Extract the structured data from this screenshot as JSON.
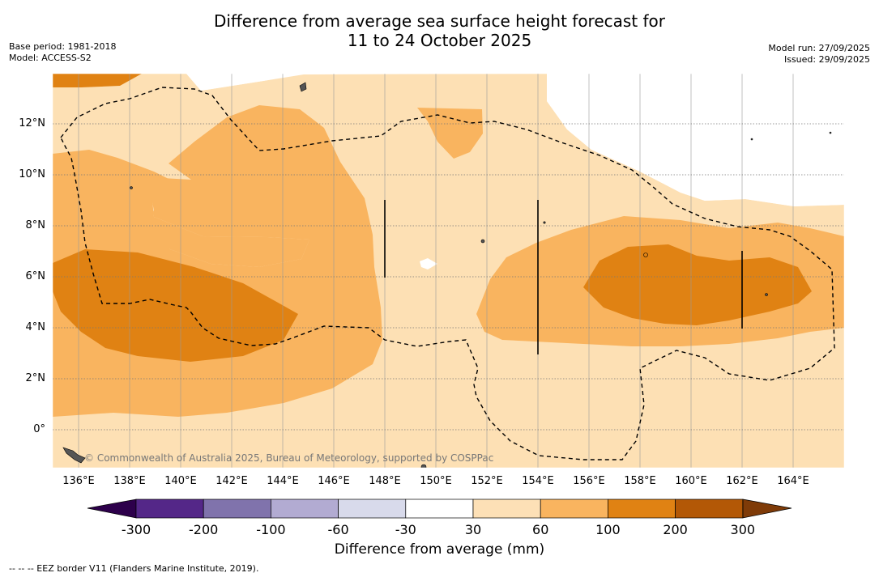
{
  "title": {
    "line1": "Difference from average sea surface height forecast for",
    "line2": "11 to 24 October 2025"
  },
  "meta": {
    "base_period": "Base period: 1981-2018",
    "model": "Model: ACCESS-S2",
    "model_run": "Model run: 27/09/2025",
    "issued": "Issued: 29/09/2025"
  },
  "map": {
    "x_ticks": [
      "136°E",
      "138°E",
      "140°E",
      "142°E",
      "144°E",
      "146°E",
      "148°E",
      "150°E",
      "152°E",
      "154°E",
      "156°E",
      "158°E",
      "160°E",
      "162°E",
      "164°E"
    ],
    "y_ticks": [
      "12°N",
      "10°N",
      "8°N",
      "6°N",
      "4°N",
      "2°N",
      "0°"
    ],
    "copyright": "© Commonwealth of Australia 2025, Bureau of Meteorology, supported by COSPPac",
    "fill_colors": {
      "30_to_60": "#fde0b4",
      "60_to_100": "#f9b45f",
      "100_to_200": "#e08213",
      "200_to_300": "#b35807"
    }
  },
  "colorbar": {
    "title": "Difference from average (mm)",
    "labels": [
      "-300",
      "-200",
      "-100",
      "-60",
      "-30",
      "30",
      "60",
      "100",
      "200",
      "300"
    ],
    "colors": [
      "#542788",
      "#8073ac",
      "#b2abd2",
      "#d8daeb",
      "#ffffff",
      "#fde0b6",
      "#f9b45f",
      "#e08213",
      "#b35806"
    ],
    "under_color": "#2d004b",
    "over_color": "#7f3b08"
  },
  "footnote": "--  --  -- EEZ border V11 (Flanders Marine Institute, 2019)."
}
